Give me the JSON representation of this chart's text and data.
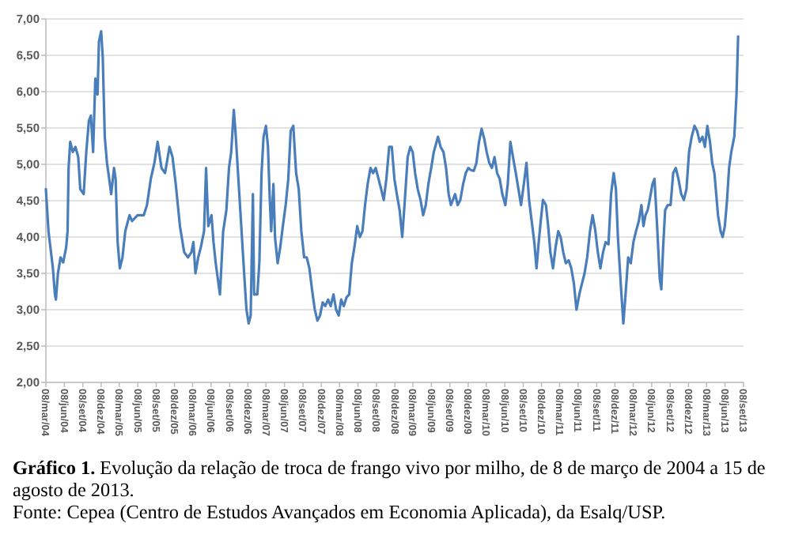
{
  "chart_data": {
    "type": "line",
    "title": "Gráfico 1. Evolução da relação de troca de frango vivo por milho, de 8 de março de 2004 a 15 de agosto de 2013.",
    "annotations": [
      "Fonte: Cepea (Centro de Estudos Avançados em Economia Aplicada), da Esalq/USP."
    ],
    "x": [
      "2004-03-08",
      "2004-03-21",
      "2004-04-12",
      "2004-04-22",
      "2004-04-27",
      "2004-05-07",
      "2004-05-20",
      "2004-06-02",
      "2004-06-17",
      "2004-06-24",
      "2004-06-29",
      "2004-07-07",
      "2004-07-20",
      "2004-08-02",
      "2004-08-16",
      "2004-08-26",
      "2004-09-12",
      "2004-09-25",
      "2004-10-08",
      "2004-10-18",
      "2004-10-29",
      "2004-11-09",
      "2004-11-20",
      "2004-11-27",
      "2004-12-08",
      "2004-12-16",
      "2004-12-26",
      "2005-01-06",
      "2005-01-17",
      "2005-01-27",
      "2005-02-10",
      "2005-02-18",
      "2005-02-28",
      "2005-03-11",
      "2005-03-24",
      "2005-04-07",
      "2005-04-28",
      "2005-05-11",
      "2005-06-07",
      "2005-07-08",
      "2005-07-24",
      "2005-08-12",
      "2005-08-30",
      "2005-09-15",
      "2005-10-04",
      "2005-10-22",
      "2005-11-13",
      "2005-11-28",
      "2005-12-14",
      "2006-01-04",
      "2006-01-25",
      "2006-02-13",
      "2006-03-02",
      "2006-03-12",
      "2006-03-22",
      "2006-04-05",
      "2006-04-18",
      "2006-05-04",
      "2006-05-14",
      "2006-05-25",
      "2006-06-10",
      "2006-06-20",
      "2006-07-01",
      "2006-07-22",
      "2006-08-07",
      "2006-08-23",
      "2006-09-05",
      "2006-09-16",
      "2006-09-29",
      "2006-10-07",
      "2006-10-20",
      "2006-11-05",
      "2006-11-21",
      "2006-12-01",
      "2006-12-12",
      "2006-12-22",
      "2007-01-02",
      "2007-01-08",
      "2007-01-24",
      "2007-02-03",
      "2007-02-14",
      "2007-02-24",
      "2007-03-08",
      "2007-03-18",
      "2007-03-26",
      "2007-04-03",
      "2007-04-14",
      "2007-04-22",
      "2007-05-05",
      "2007-05-18",
      "2007-05-31",
      "2007-06-14",
      "2007-06-27",
      "2007-07-09",
      "2007-07-22",
      "2007-08-05",
      "2007-08-18",
      "2007-08-31",
      "2007-09-14",
      "2007-09-27",
      "2007-10-10",
      "2007-10-23",
      "2007-11-06",
      "2007-11-19",
      "2007-12-02",
      "2007-12-15",
      "2007-12-28",
      "2008-01-11",
      "2008-01-24",
      "2008-02-07",
      "2008-02-20",
      "2008-03-04",
      "2008-03-16",
      "2008-03-29",
      "2008-04-12",
      "2008-04-25",
      "2008-05-08",
      "2008-05-21",
      "2008-06-04",
      "2008-06-17",
      "2008-06-30",
      "2008-07-13",
      "2008-07-26",
      "2008-08-09",
      "2008-08-22",
      "2008-09-04",
      "2008-09-18",
      "2008-10-01",
      "2008-10-14",
      "2008-10-27",
      "2008-11-10",
      "2008-11-23",
      "2008-12-06",
      "2008-12-18",
      "2009-01-01",
      "2009-01-14",
      "2009-01-27",
      "2009-02-10",
      "2009-02-23",
      "2009-03-07",
      "2009-03-19",
      "2009-04-01",
      "2009-04-15",
      "2009-04-28",
      "2009-05-11",
      "2009-05-24",
      "2009-06-07",
      "2009-06-20",
      "2009-07-11",
      "2009-07-24",
      "2009-08-07",
      "2009-08-20",
      "2009-09-02",
      "2009-09-13",
      "2009-09-23",
      "2009-10-04",
      "2009-10-17",
      "2009-10-30",
      "2009-11-13",
      "2009-11-26",
      "2009-12-09",
      "2009-12-22",
      "2010-01-05",
      "2010-01-18",
      "2010-01-31",
      "2010-02-13",
      "2010-02-26",
      "2010-03-10",
      "2010-03-23",
      "2010-04-05",
      "2010-04-18",
      "2010-05-01",
      "2010-05-14",
      "2010-05-27",
      "2010-06-11",
      "2010-06-23",
      "2010-07-06",
      "2010-07-19",
      "2010-08-02",
      "2010-08-15",
      "2010-08-28",
      "2010-09-11",
      "2010-09-24",
      "2010-10-07",
      "2010-10-20",
      "2010-11-02",
      "2010-11-13",
      "2010-11-24",
      "2010-12-04",
      "2010-12-15",
      "2010-12-30",
      "2011-01-10",
      "2011-01-21",
      "2011-02-03",
      "2011-02-16",
      "2011-03-01",
      "2011-03-13",
      "2011-03-26",
      "2011-04-08",
      "2011-04-22",
      "2011-05-05",
      "2011-05-18",
      "2011-05-31",
      "2011-06-14",
      "2011-06-27",
      "2011-07-10",
      "2011-07-23",
      "2011-08-06",
      "2011-08-19",
      "2011-09-01",
      "2011-09-14",
      "2011-09-27",
      "2011-10-10",
      "2011-10-23",
      "2011-11-06",
      "2011-11-19",
      "2011-12-02",
      "2011-12-13",
      "2011-12-23",
      "2012-01-06",
      "2012-01-19",
      "2012-01-30",
      "2012-02-12",
      "2012-02-25",
      "2012-03-09",
      "2012-03-22",
      "2012-04-05",
      "2012-04-18",
      "2012-04-28",
      "2012-05-08",
      "2012-05-19",
      "2012-05-29",
      "2012-06-12",
      "2012-06-22",
      "2012-07-05",
      "2012-07-18",
      "2012-07-26",
      "2012-08-04",
      "2012-08-14",
      "2012-08-27",
      "2012-09-10",
      "2012-09-23",
      "2012-10-06",
      "2012-10-19",
      "2012-11-02",
      "2012-11-15",
      "2012-11-28",
      "2012-12-11",
      "2012-12-24",
      "2013-01-07",
      "2013-01-20",
      "2013-02-02",
      "2013-02-16",
      "2013-02-28",
      "2013-03-12",
      "2013-03-25",
      "2013-04-05",
      "2013-04-16",
      "2013-04-23",
      "2013-05-04",
      "2013-05-17",
      "2013-05-27",
      "2013-06-07",
      "2013-06-18",
      "2013-06-28",
      "2013-07-09",
      "2013-07-24",
      "2013-08-04",
      "2013-08-12"
    ],
    "series": [
      {
        "color": "#4a7ebb",
        "values": [
          4.66,
          4.08,
          3.57,
          3.21,
          3.14,
          3.5,
          3.72,
          3.65,
          3.86,
          4.08,
          4.95,
          5.31,
          5.17,
          5.24,
          5.1,
          4.66,
          4.59,
          5.17,
          5.6,
          5.67,
          5.17,
          6.18,
          5.96,
          6.69,
          6.83,
          6.47,
          5.38,
          5.02,
          4.8,
          4.59,
          4.95,
          4.8,
          3.93,
          3.57,
          3.72,
          4.08,
          4.3,
          4.22,
          4.3,
          4.3,
          4.44,
          4.8,
          5.02,
          5.31,
          4.95,
          4.88,
          5.24,
          5.1,
          4.73,
          4.15,
          3.79,
          3.72,
          3.79,
          3.93,
          3.5,
          3.72,
          3.86,
          4.08,
          4.95,
          4.15,
          4.3,
          3.93,
          3.64,
          3.21,
          4.08,
          4.37,
          4.95,
          5.17,
          5.75,
          5.46,
          4.88,
          4.15,
          3.43,
          3.0,
          2.81,
          2.92,
          4.59,
          3.21,
          3.21,
          3.64,
          4.88,
          5.38,
          5.53,
          5.24,
          4.59,
          4.08,
          4.73,
          4.0,
          3.64,
          3.86,
          4.15,
          4.44,
          4.8,
          5.46,
          5.53,
          4.88,
          4.66,
          4.08,
          3.72,
          3.72,
          3.57,
          3.28,
          3.0,
          2.85,
          2.92,
          3.1,
          3.05,
          3.14,
          3.05,
          3.21,
          3.0,
          2.92,
          3.14,
          3.05,
          3.17,
          3.21,
          3.64,
          3.86,
          4.15,
          4.0,
          4.08,
          4.44,
          4.73,
          4.95,
          4.88,
          4.95,
          4.8,
          4.66,
          4.51,
          4.8,
          5.24,
          5.24,
          4.8,
          4.59,
          4.37,
          4.0,
          4.51,
          5.1,
          5.24,
          5.17,
          4.88,
          4.66,
          4.51,
          4.3,
          4.44,
          4.73,
          4.95,
          5.17,
          5.38,
          5.24,
          5.17,
          4.95,
          4.59,
          4.44,
          4.51,
          4.59,
          4.44,
          4.51,
          4.73,
          4.88,
          4.95,
          4.92,
          4.91,
          5.02,
          5.31,
          5.49,
          5.35,
          5.17,
          5.02,
          4.95,
          5.1,
          4.88,
          4.8,
          4.59,
          4.44,
          4.73,
          5.31,
          5.1,
          4.88,
          4.66,
          4.44,
          4.73,
          5.02,
          4.51,
          4.22,
          3.93,
          3.57,
          3.93,
          4.22,
          4.51,
          4.44,
          4.15,
          3.79,
          3.57,
          3.86,
          4.08,
          4.0,
          3.79,
          3.64,
          3.68,
          3.57,
          3.36,
          3.0,
          3.21,
          3.36,
          3.5,
          3.72,
          4.08,
          4.3,
          4.1,
          3.79,
          3.57,
          3.79,
          3.93,
          3.9,
          4.59,
          4.88,
          4.66,
          4.0,
          3.36,
          2.81,
          3.21,
          3.72,
          3.64,
          3.93,
          4.08,
          4.22,
          4.44,
          4.15,
          4.3,
          4.37,
          4.51,
          4.73,
          4.8,
          4.15,
          3.43,
          3.28,
          3.86,
          4.37,
          4.44,
          4.44,
          4.88,
          4.95,
          4.8,
          4.59,
          4.51,
          4.66,
          5.17,
          5.38,
          5.53,
          5.46,
          5.31,
          5.38,
          5.24,
          5.53,
          5.31,
          5.02,
          4.88,
          4.66,
          4.3,
          4.08,
          4.0,
          4.15,
          4.51,
          4.95,
          5.17,
          5.38,
          5.96,
          6.76
        ]
      }
    ],
    "xlim": [
      "2004-03-08",
      "2013-09-08"
    ],
    "xticks": [
      {
        "value": "2004-03-08",
        "label": "08/mar/04"
      },
      {
        "value": "2004-06-08",
        "label": "08/jun/04"
      },
      {
        "value": "2004-09-08",
        "label": "08/set/04"
      },
      {
        "value": "2004-12-08",
        "label": "08/dez/04"
      },
      {
        "value": "2005-03-08",
        "label": "08/mar/05"
      },
      {
        "value": "2005-06-08",
        "label": "08/jun/05"
      },
      {
        "value": "2005-09-08",
        "label": "08/set/05"
      },
      {
        "value": "2005-12-08",
        "label": "08/dez/05"
      },
      {
        "value": "2006-03-08",
        "label": "08/mar/06"
      },
      {
        "value": "2006-06-08",
        "label": "08/jun/06"
      },
      {
        "value": "2006-09-08",
        "label": "08/set/06"
      },
      {
        "value": "2006-12-08",
        "label": "08/dez/06"
      },
      {
        "value": "2007-03-08",
        "label": "08/mar/07"
      },
      {
        "value": "2007-06-08",
        "label": "08/jun/07"
      },
      {
        "value": "2007-09-08",
        "label": "08/set/07"
      },
      {
        "value": "2007-12-08",
        "label": "08/dez/07"
      },
      {
        "value": "2008-03-08",
        "label": "08/mar/08"
      },
      {
        "value": "2008-06-08",
        "label": "08/jun/08"
      },
      {
        "value": "2008-09-08",
        "label": "08/set/08"
      },
      {
        "value": "2008-12-08",
        "label": "08/dez/08"
      },
      {
        "value": "2009-03-08",
        "label": "08/mar/09"
      },
      {
        "value": "2009-06-08",
        "label": "08/jun/09"
      },
      {
        "value": "2009-09-08",
        "label": "08/set/09"
      },
      {
        "value": "2009-12-08",
        "label": "08/dez/09"
      },
      {
        "value": "2010-03-08",
        "label": "08/mar/10"
      },
      {
        "value": "2010-06-08",
        "label": "08/jun/10"
      },
      {
        "value": "2010-09-08",
        "label": "08/set/10"
      },
      {
        "value": "2010-12-08",
        "label": "08/dez/10"
      },
      {
        "value": "2011-03-08",
        "label": "08/mar/11"
      },
      {
        "value": "2011-06-08",
        "label": "08/jun/11"
      },
      {
        "value": "2011-09-08",
        "label": "08/set/11"
      },
      {
        "value": "2011-12-08",
        "label": "08/dez/11"
      },
      {
        "value": "2012-03-08",
        "label": "08/mar/12"
      },
      {
        "value": "2012-06-08",
        "label": "08/jun/12"
      },
      {
        "value": "2012-09-08",
        "label": "08/set/12"
      },
      {
        "value": "2012-12-08",
        "label": "08/dez/12"
      },
      {
        "value": "2013-03-08",
        "label": "08/mar/13"
      },
      {
        "value": "2013-06-08",
        "label": "08/jun/13"
      },
      {
        "value": "2013-09-08",
        "label": "08/set/13"
      }
    ],
    "ylim": [
      2,
      7
    ],
    "yticks": [
      {
        "value": 2,
        "label": "2,00"
      },
      {
        "value": 2.5,
        "label": "2,50"
      },
      {
        "value": 3,
        "label": "3,00"
      },
      {
        "value": 3.5,
        "label": "3,50"
      },
      {
        "value": 4,
        "label": "4,00"
      },
      {
        "value": 4.5,
        "label": "4,50"
      },
      {
        "value": 5,
        "label": "5,00"
      },
      {
        "value": 5.5,
        "label": "5,50"
      },
      {
        "value": 6,
        "label": "6,00"
      },
      {
        "value": 6.5,
        "label": "6,50"
      },
      {
        "value": 7,
        "label": "7,00"
      }
    ],
    "grid": "y"
  }
}
